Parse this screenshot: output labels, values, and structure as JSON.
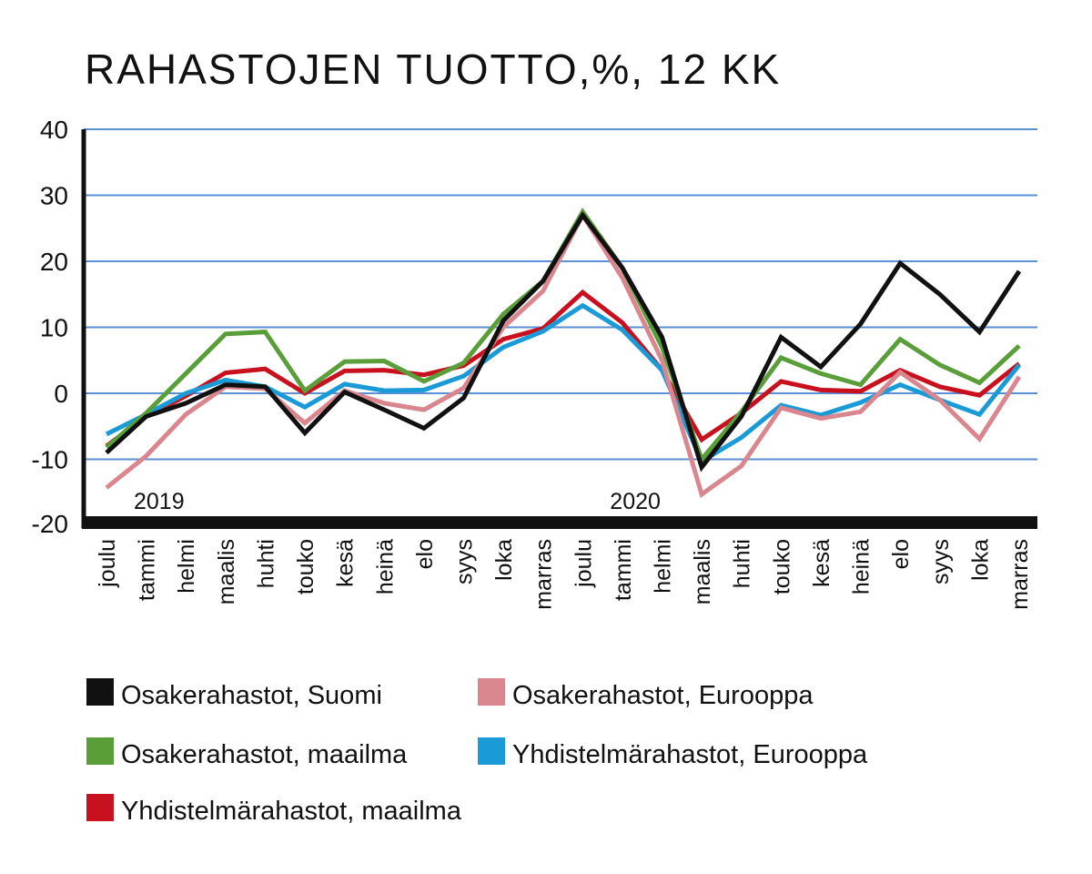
{
  "chart_data": {
    "type": "line",
    "title": "RAHASTOJEN TUOTTO,%, 12 KK",
    "xlabel": "",
    "ylabel": "",
    "ylim": [
      -20,
      40
    ],
    "yticks": [
      "40",
      "30",
      "20",
      "10",
      "0",
      "-10",
      "-20"
    ],
    "grid": true,
    "year_labels": [
      {
        "text": "2019",
        "at": 0
      },
      {
        "text": "2020",
        "at": 12
      }
    ],
    "categories": [
      "joulu",
      "tammi",
      "helmi",
      "maalis",
      "huhti",
      "touko",
      "kesä",
      "heinä",
      "elo",
      "syys",
      "loka",
      "marras",
      "joulu",
      "tammi",
      "helmi",
      "maalis",
      "huhti",
      "touko",
      "kesä",
      "heinä",
      "elo",
      "syys",
      "loka",
      "marras"
    ],
    "legend_position": "bottom",
    "series": [
      {
        "name": "Osakerahastot, Suomi",
        "color": "#111111",
        "values": [
          -9,
          -3.5,
          -1.5,
          1.3,
          1,
          -6,
          0.2,
          -2.5,
          -5.3,
          -0.7,
          11,
          17,
          27,
          19,
          8.5,
          -11.2,
          -3.5,
          8.5,
          4,
          10.5,
          19.7,
          15,
          9.3,
          18.5
        ]
      },
      {
        "name": "Osakerahastot, Eurooppa",
        "color": "#d9868e",
        "values": [
          -14.3,
          -9.5,
          -3.2,
          1,
          0.7,
          -4.5,
          0.4,
          -1.5,
          -2.5,
          0.8,
          10,
          15.5,
          27,
          17.5,
          5,
          -15.3,
          -11,
          -2.2,
          -3.8,
          -2.8,
          3.2,
          -1,
          -6.9,
          2.5
        ]
      },
      {
        "name": "Osakerahastot, maailma",
        "color": "#5a9e3a",
        "values": [
          -8.2,
          -3,
          3,
          9,
          9.3,
          0.4,
          4.8,
          4.9,
          1.8,
          4.6,
          12,
          17,
          27.5,
          19,
          7,
          -10,
          -2.8,
          5.4,
          3,
          1.3,
          8.2,
          4.3,
          1.6,
          7.2
        ]
      },
      {
        "name": "Yhdistelmärahastot, Eurooppa",
        "color": "#1a9ad6",
        "values": [
          -6.2,
          -3.2,
          0,
          2,
          1,
          -2.1,
          1.4,
          0.4,
          0.5,
          2.6,
          7,
          9.4,
          13.3,
          9.6,
          3.5,
          -10.3,
          -6.7,
          -1.8,
          -3.3,
          -1.4,
          1.3,
          -1,
          -3.2,
          4.3
        ]
      },
      {
        "name": "Yhdistelmärahastot, maailma",
        "color": "#c8101e",
        "values": [
          -8,
          -3.5,
          -0.4,
          3.1,
          3.7,
          0,
          3.4,
          3.5,
          2.8,
          4.2,
          8.2,
          9.8,
          15.3,
          10.7,
          3.5,
          -7,
          -3,
          1.8,
          0.5,
          0.3,
          3.5,
          1,
          -0.3,
          4.5
        ]
      }
    ],
    "draw_order": [
      4,
      3,
      2,
      1,
      0
    ],
    "grid_color": "#5b8fd6"
  }
}
